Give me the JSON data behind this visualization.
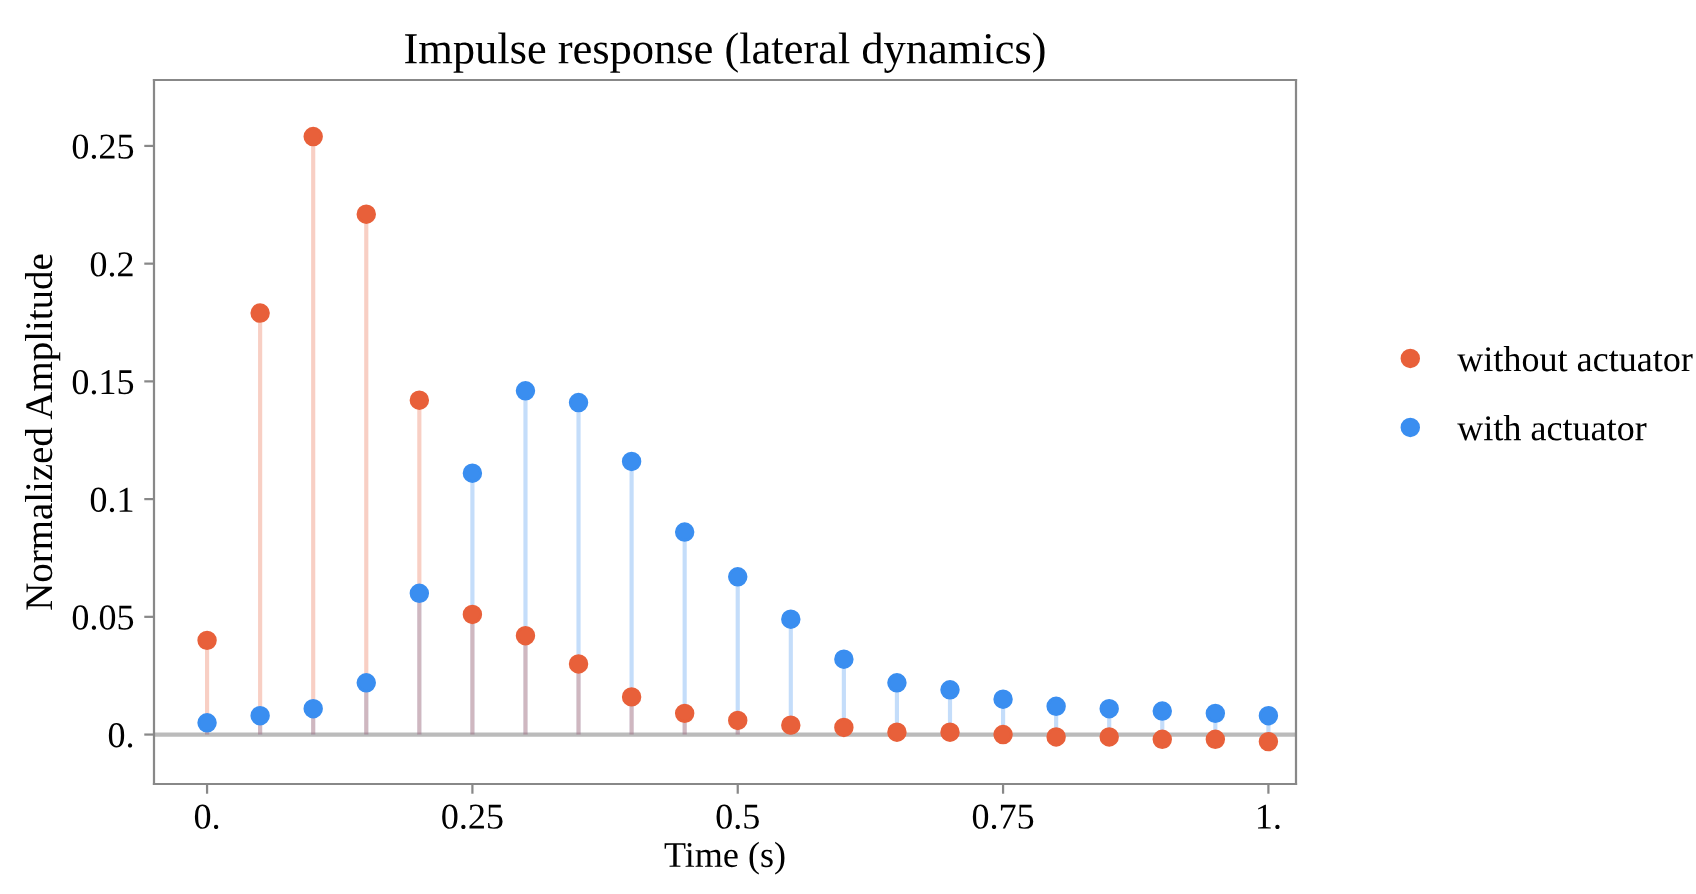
{
  "chart_data": {
    "type": "lollipop",
    "title": "Impulse response (lateral dynamics)",
    "xlabel": "Time (s)",
    "ylabel": "Normalized Amplitude",
    "x": [
      0,
      0.05,
      0.1,
      0.15,
      0.2,
      0.25,
      0.3,
      0.35,
      0.4,
      0.45,
      0.5,
      0.55,
      0.6,
      0.65,
      0.7,
      0.75,
      0.8,
      0.85,
      0.9,
      0.95,
      1.0
    ],
    "series": [
      {
        "name": "without actuator",
        "color": "#e8603a",
        "values": [
          0.04,
          0.179,
          0.254,
          0.221,
          0.142,
          0.051,
          0.042,
          0.03,
          0.016,
          0.009,
          0.006,
          0.004,
          0.003,
          0.001,
          0.001,
          0,
          -0.001,
          -0.001,
          -0.002,
          -0.002,
          -0.003
        ]
      },
      {
        "name": "with actuator",
        "color": "#3a8ef0",
        "values": [
          0.005,
          0.008,
          0.011,
          0.022,
          0.06,
          0.111,
          0.146,
          0.141,
          0.116,
          0.086,
          0.067,
          0.049,
          0.032,
          0.022,
          0.019,
          0.015,
          0.012,
          0.011,
          0.01,
          0.009,
          0.008
        ]
      }
    ],
    "xlim": [
      -0.05,
      1.026
    ],
    "ylim": [
      -0.021,
      0.278
    ],
    "xticks": [
      {
        "value": 0,
        "label": "0."
      },
      0.25,
      0.5,
      0.75,
      {
        "value": 1,
        "label": "1."
      }
    ],
    "yticks": [
      {
        "value": 0,
        "label": "0."
      },
      0.05,
      0.1,
      0.15,
      0.2,
      0.25
    ],
    "ref_lines": [
      {
        "axis": "y",
        "value": 0,
        "color": "#bbbbbb"
      }
    ],
    "legend": "right",
    "marker": "circle",
    "grid": false
  }
}
